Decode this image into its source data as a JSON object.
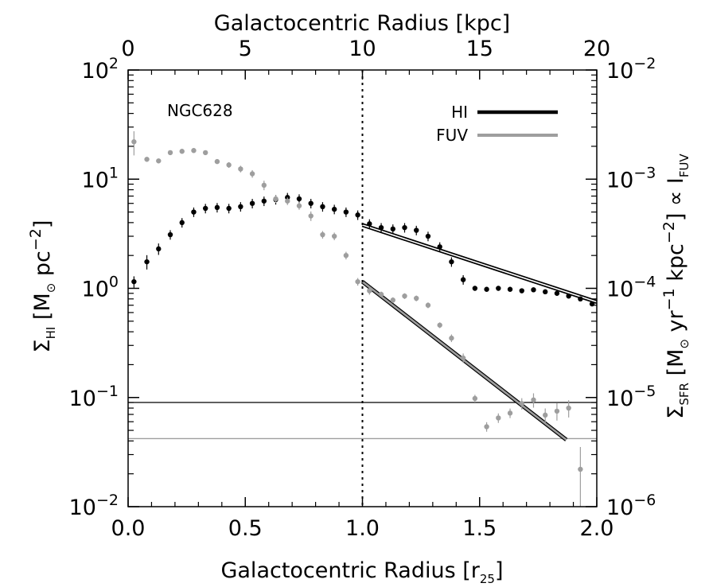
{
  "chart_data": {
    "type": "scatter",
    "annotation": "NGC628",
    "vertical_marker_x": 1.0,
    "x_bottom": {
      "label_main": "Galactocentric Radius [r",
      "label_sub": "25",
      "label_end": "]",
      "range": [
        0.0,
        2.0
      ],
      "ticks": [
        "0.0",
        "0.5",
        "1.0",
        "1.5",
        "2.0"
      ]
    },
    "x_top": {
      "label": "Galactocentric Radius [kpc]",
      "range": [
        0,
        20
      ],
      "ticks": [
        "0",
        "5",
        "10",
        "15",
        "20"
      ]
    },
    "y_left": {
      "label_sigma": "Σ",
      "label_sub": "HI",
      "label_unit": "[M",
      "label_sun": "⊙",
      "label_pc": " pc",
      "label_exp": "−2",
      "label_close": "]",
      "scale": "log",
      "range": [
        0.01,
        100
      ],
      "ticks": [
        {
          "base": "10",
          "exp": "−2"
        },
        {
          "base": "10",
          "exp": "−1"
        },
        {
          "base": "10",
          "exp": "0"
        },
        {
          "base": "10",
          "exp": "1"
        },
        {
          "base": "10",
          "exp": "2"
        }
      ]
    },
    "y_right": {
      "label_sigma": "Σ",
      "label_sub": "SFR",
      "label_unit": "[M",
      "label_sun": "⊙",
      "label_yr": " yr",
      "label_yr_exp": "−1",
      "label_kpc": " kpc",
      "label_kpc_exp": "−2",
      "label_close": "]",
      "label_prop": " ∝ I",
      "label_fuv_sub": "FUV",
      "scale": "log",
      "range": [
        1e-06,
        0.01
      ],
      "ticks": [
        {
          "base": "10",
          "exp": "−6"
        },
        {
          "base": "10",
          "exp": "−5"
        },
        {
          "base": "10",
          "exp": "−4"
        },
        {
          "base": "10",
          "exp": "−3"
        },
        {
          "base": "10",
          "exp": "−2"
        }
      ]
    },
    "legend": {
      "position": "top-right",
      "entries": [
        {
          "name": "HI",
          "color": "#000000"
        },
        {
          "name": "FUV",
          "color": "#9e9e9e"
        }
      ]
    },
    "series": [
      {
        "name": "HI",
        "color": "#000000",
        "axis": "left",
        "x": [
          0.025,
          0.08,
          0.13,
          0.18,
          0.23,
          0.28,
          0.33,
          0.38,
          0.43,
          0.48,
          0.53,
          0.58,
          0.63,
          0.68,
          0.73,
          0.78,
          0.83,
          0.88,
          0.93,
          0.98,
          1.03,
          1.08,
          1.13,
          1.18,
          1.23,
          1.28,
          1.33,
          1.38,
          1.43,
          1.48,
          1.53,
          1.58,
          1.63,
          1.68,
          1.73,
          1.78,
          1.83,
          1.88,
          1.93,
          1.98
        ],
        "y": [
          1.15,
          1.75,
          2.3,
          3.1,
          4.0,
          5.0,
          5.4,
          5.5,
          5.4,
          5.6,
          6.0,
          6.3,
          6.5,
          6.8,
          6.6,
          6.0,
          5.6,
          5.3,
          5.0,
          4.7,
          3.9,
          3.6,
          3.5,
          3.6,
          3.4,
          3.0,
          2.4,
          1.75,
          1.2,
          1.0,
          0.98,
          1.0,
          0.98,
          0.95,
          0.97,
          0.93,
          0.9,
          0.85,
          0.8,
          0.72
        ],
        "yerr": [
          0.12,
          0.15,
          0.12,
          0.1,
          0.1,
          0.1,
          0.1,
          0.1,
          0.1,
          0.1,
          0.1,
          0.1,
          0.1,
          0.1,
          0.1,
          0.1,
          0.1,
          0.1,
          0.1,
          0.1,
          0.1,
          0.1,
          0.1,
          0.1,
          0.1,
          0.1,
          0.1,
          0.1,
          0.1,
          0.05,
          0.05,
          0.05,
          0.05,
          0.05,
          0.05,
          0.05,
          0.05,
          0.05,
          0.05,
          0.05
        ]
      },
      {
        "name": "FUV",
        "color": "#9e9e9e",
        "axis": "right",
        "x": [
          0.025,
          0.08,
          0.13,
          0.18,
          0.23,
          0.28,
          0.33,
          0.38,
          0.43,
          0.48,
          0.53,
          0.58,
          0.63,
          0.68,
          0.73,
          0.78,
          0.83,
          0.88,
          0.93,
          0.98,
          1.03,
          1.08,
          1.13,
          1.18,
          1.23,
          1.28,
          1.33,
          1.38,
          1.43,
          1.48,
          1.53,
          1.58,
          1.63,
          1.68,
          1.73,
          1.78,
          1.83,
          1.88,
          1.93
        ],
        "y": [
          0.0022,
          0.00152,
          0.00147,
          0.00175,
          0.0018,
          0.00183,
          0.00175,
          0.00145,
          0.00135,
          0.00124,
          0.00112,
          0.00088,
          0.00066,
          0.00063,
          0.00057,
          0.00046,
          0.00031,
          0.0003,
          0.0002,
          0.000115,
          9.5e-05,
          8.8e-05,
          7.8e-05,
          8.5e-05,
          8.1e-05,
          7e-05,
          4.6e-05,
          3.5e-05,
          2.3e-05,
          9.8e-06,
          5.4e-06,
          6.5e-06,
          7.2e-06,
          8.8e-06,
          9.5e-06,
          6.9e-06,
          7.5e-06,
          8e-06,
          2.2e-06
        ],
        "yerr": [
          0.25,
          0.05,
          0.05,
          0.05,
          0.05,
          0.05,
          0.05,
          0.05,
          0.06,
          0.07,
          0.08,
          0.1,
          0.08,
          0.08,
          0.08,
          0.1,
          0.08,
          0.08,
          0.08,
          0.08,
          0.08,
          0.06,
          0.06,
          0.06,
          0.06,
          0.06,
          0.06,
          0.08,
          0.1,
          0.08,
          0.1,
          0.1,
          0.1,
          0.12,
          0.15,
          0.15,
          0.18,
          0.18,
          0.6
        ]
      }
    ],
    "fits": [
      {
        "name": "HI",
        "color": "#000000",
        "axis": "left",
        "x": [
          1.0,
          2.0
        ],
        "y": [
          3.8,
          0.75
        ]
      },
      {
        "name": "FUV",
        "color": "#9e9e9e",
        "axis": "right",
        "x": [
          1.0,
          1.87
        ],
        "y": [
          0.000115,
          4.1e-06
        ]
      }
    ],
    "limits": [
      {
        "name": "HI",
        "color": "#000000",
        "axis": "left",
        "y": 0.09
      },
      {
        "name": "FUV",
        "color": "#9e9e9e",
        "axis": "right",
        "y": 4.2e-06
      }
    ]
  }
}
